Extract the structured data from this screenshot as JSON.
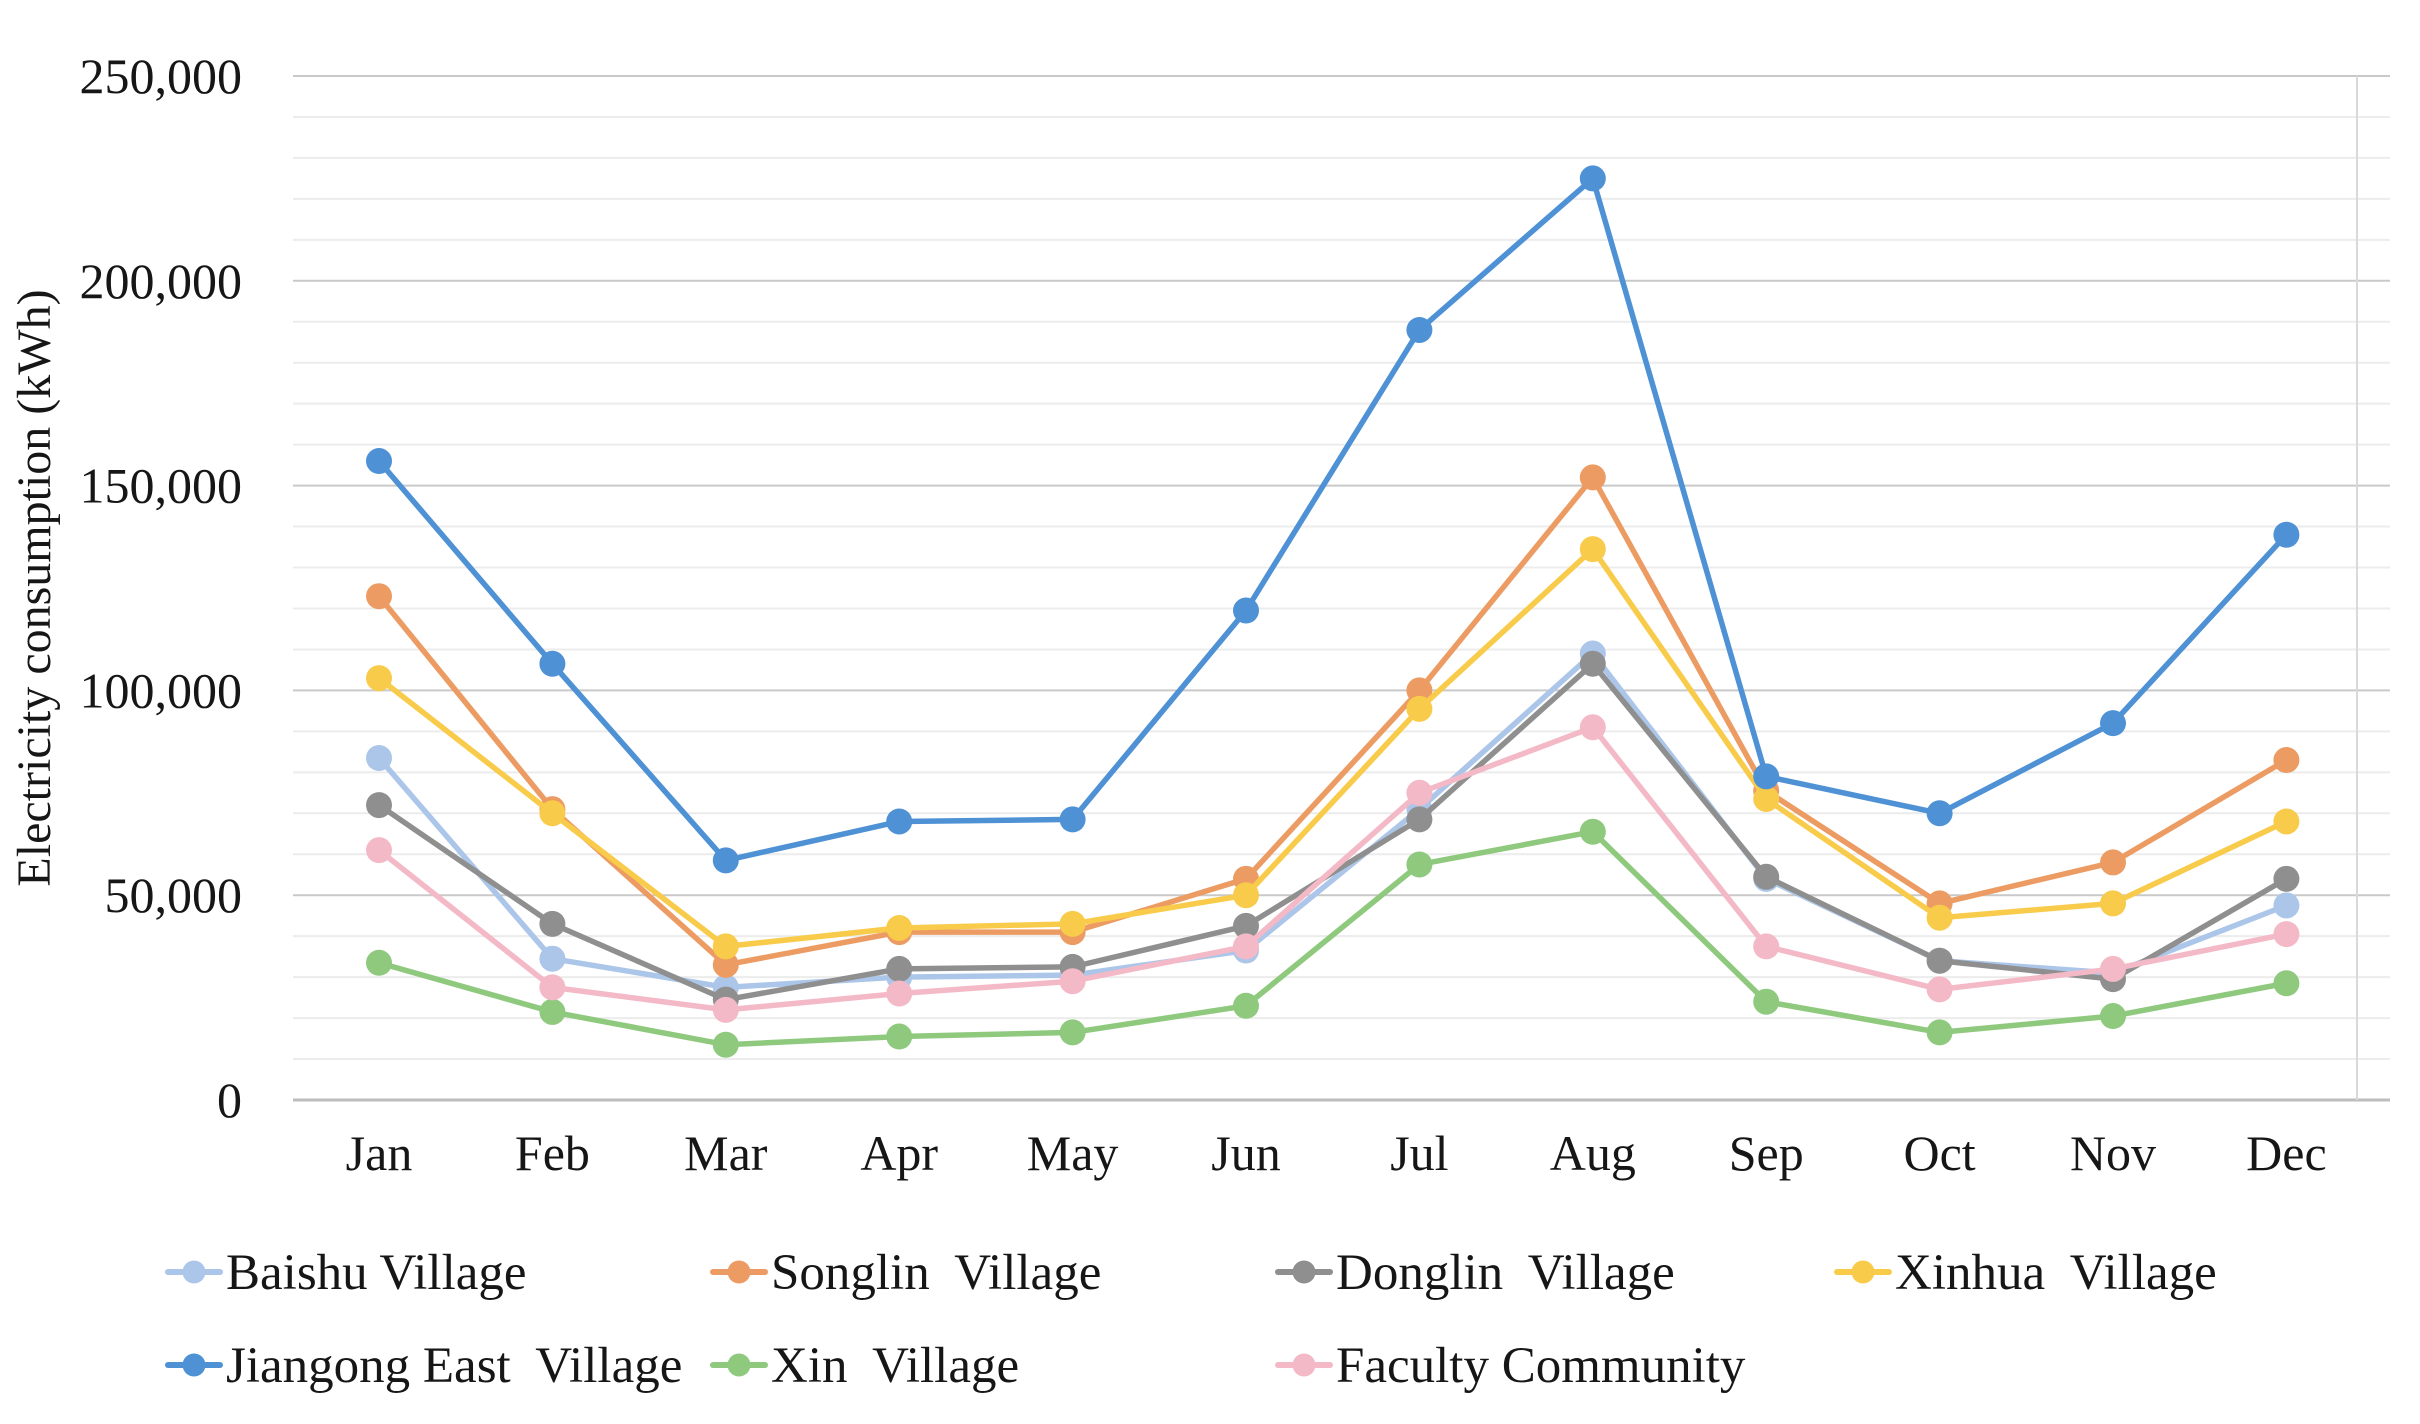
{
  "chart_data": {
    "type": "line",
    "title": "",
    "xlabel": "",
    "ylabel": "Electricity consumption (kWh)",
    "ylim": [
      0,
      250000
    ],
    "y_major_interval": 50000,
    "y_minor_interval": 10000,
    "y_tick_labels": [
      "0",
      "50,000",
      "100,000",
      "150,000",
      "200,000",
      "250,000"
    ],
    "grid": true,
    "legend_position": "bottom",
    "categories": [
      "Jan",
      "Feb",
      "Mar",
      "Apr",
      "May",
      "Jun",
      "Jul",
      "Aug",
      "Sep",
      "Oct",
      "Nov",
      "Dec"
    ],
    "series": [
      {
        "name": "Baishu Village",
        "color": "#ABC6E9",
        "values": [
          83500,
          34500,
          27500,
          30000,
          30500,
          36500,
          71000,
          109000,
          54000,
          34000,
          31000,
          47500
        ]
      },
      {
        "name": "Songlin  Village",
        "color": "#EC9C63",
        "values": [
          123000,
          71000,
          33000,
          41000,
          41000,
          54000,
          100000,
          152000,
          75500,
          48000,
          58000,
          83000
        ]
      },
      {
        "name": "Donglin  Village",
        "color": "#8F8F8F",
        "values": [
          72000,
          43000,
          24500,
          32000,
          32500,
          42500,
          68500,
          106500,
          54500,
          34000,
          29500,
          54000
        ]
      },
      {
        "name": "Xinhua  Village",
        "color": "#F9CB4B",
        "values": [
          103000,
          70000,
          37500,
          42000,
          43000,
          50000,
          95500,
          134500,
          73500,
          44500,
          48000,
          68000
        ]
      },
      {
        "name": "Jiangong East  Village",
        "color": "#4E91D5",
        "values": [
          156000,
          106500,
          58500,
          68000,
          68500,
          119500,
          188000,
          225000,
          79000,
          70000,
          92000,
          138000
        ]
      },
      {
        "name": "Xin  Village",
        "color": "#8FC97E",
        "values": [
          33500,
          21500,
          13500,
          15500,
          16500,
          23000,
          57500,
          65500,
          24000,
          16500,
          20500,
          28500
        ]
      },
      {
        "name": "Faculty Community",
        "color": "#F4B9C7",
        "values": [
          61000,
          27500,
          22000,
          26000,
          29000,
          37500,
          75000,
          91000,
          37500,
          27000,
          32000,
          40500
        ]
      }
    ]
  }
}
